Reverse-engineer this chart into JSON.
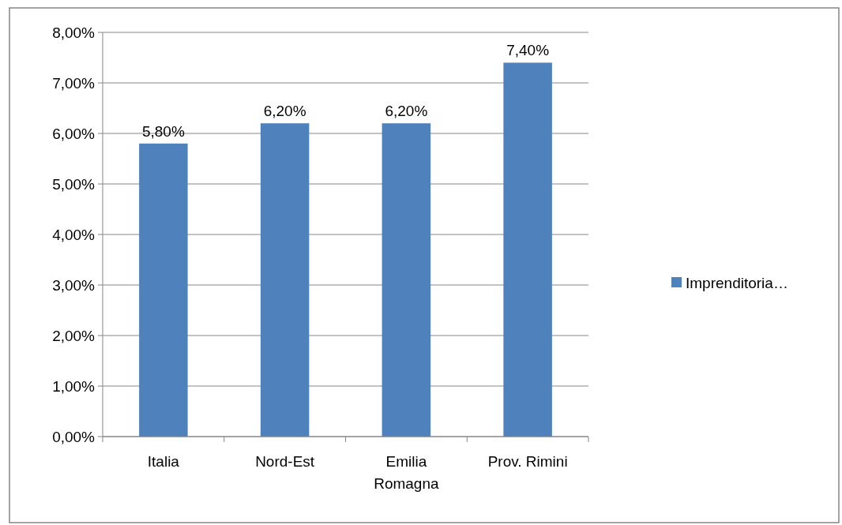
{
  "chart_data": {
    "type": "bar",
    "categories": [
      "Italia",
      "Nord-Est",
      "Emilia Romagna",
      "Prov. Rimini"
    ],
    "series": [
      {
        "name": "Imprenditoria…",
        "color": "#4f81bd",
        "values": [
          5.8,
          6.2,
          6.2,
          7.4
        ],
        "value_labels": [
          "5,80%",
          "6,20%",
          "6,20%",
          "7,40%"
        ]
      }
    ],
    "ylim": [
      0,
      8
    ],
    "yticks": [
      {
        "value": 0,
        "label": "0,00%"
      },
      {
        "value": 1,
        "label": "1,00%"
      },
      {
        "value": 2,
        "label": "2,00%"
      },
      {
        "value": 3,
        "label": "3,00%"
      },
      {
        "value": 4,
        "label": "4,00%"
      },
      {
        "value": 5,
        "label": "5,00%"
      },
      {
        "value": 6,
        "label": "6,00%"
      },
      {
        "value": 7,
        "label": "7,00%"
      },
      {
        "value": 8,
        "label": "8,00%"
      }
    ],
    "grid": "y",
    "legend": "right"
  }
}
